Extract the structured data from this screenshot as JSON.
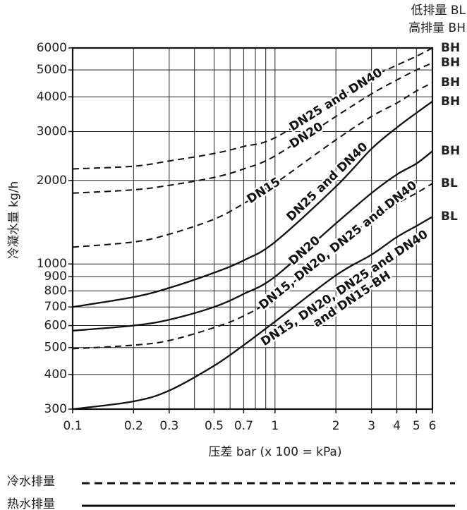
{
  "chart_data": {
    "type": "line",
    "x_label": "压差 bar (x 100 = kPa)",
    "y_label": "冷凝水量 kg/h",
    "log_x": true,
    "log_y": true,
    "grid": true,
    "xlim": [
      0.1,
      6
    ],
    "ylim": [
      300,
      6000
    ],
    "xticks": [
      0.1,
      0.2,
      0.3,
      0.5,
      0.7,
      1,
      2,
      3,
      4,
      5,
      6
    ],
    "xminor": [
      0.4,
      0.6,
      0.8,
      0.9
    ],
    "yticks": [
      300,
      400,
      500,
      600,
      700,
      800,
      900,
      1000,
      2000,
      3000,
      4000,
      5000,
      6000
    ],
    "x": [
      0.1,
      0.2,
      0.3,
      0.5,
      0.7,
      1,
      2,
      3,
      4,
      5,
      6
    ],
    "series": [
      {
        "label": [
          "DN25 and DN40"
        ],
        "style": "dashed",
        "color": "#111111",
        "end_label": "BH",
        "values": [
          2200,
          2250,
          2350,
          2500,
          2650,
          2850,
          3900,
          4700,
          5200,
          5600,
          6000
        ]
      },
      {
        "label": [
          "DN20"
        ],
        "style": "dashed",
        "color": "#111111",
        "end_label": "BH",
        "values": [
          1800,
          1850,
          1920,
          2050,
          2200,
          2450,
          3400,
          4100,
          4600,
          5000,
          5300
        ]
      },
      {
        "label": [
          "DN15"
        ],
        "style": "dashed",
        "color": "#111111",
        "end_label": "BH",
        "values": [
          1150,
          1200,
          1280,
          1450,
          1650,
          1950,
          2800,
          3400,
          3800,
          4200,
          4500
        ]
      },
      {
        "label": [
          "DN25 and DN40"
        ],
        "style": "solid",
        "color": "#111111",
        "end_label": "BH",
        "values": [
          700,
          760,
          820,
          930,
          1030,
          1200,
          1900,
          2600,
          3100,
          3500,
          3850
        ]
      },
      {
        "label": [
          "DN20"
        ],
        "style": "solid",
        "color": "#111111",
        "end_label": "BH",
        "values": [
          575,
          600,
          630,
          700,
          780,
          900,
          1400,
          1800,
          2100,
          2300,
          2550
        ]
      },
      {
        "label": [
          "DN15, DN20, DN25 and DN40"
        ],
        "style": "dashed",
        "color": "#111111",
        "end_label": "BL",
        "values": [
          495,
          510,
          530,
          590,
          650,
          760,
          1150,
          1450,
          1650,
          1800,
          1950
        ]
      },
      {
        "label": [
          "DN15, DN20, DN25 and DN40",
          "and DN15-BH"
        ],
        "style": "solid",
        "color": "#111111",
        "end_label": "BL",
        "values": [
          300,
          320,
          350,
          430,
          510,
          620,
          910,
          1080,
          1250,
          1370,
          1480
        ]
      }
    ],
    "key": [
      "低排量 BL",
      "高排量 BH"
    ],
    "legend": [
      {
        "label": "冷水排量",
        "style": "dashed"
      },
      {
        "label": "热水排量",
        "style": "solid"
      }
    ]
  }
}
